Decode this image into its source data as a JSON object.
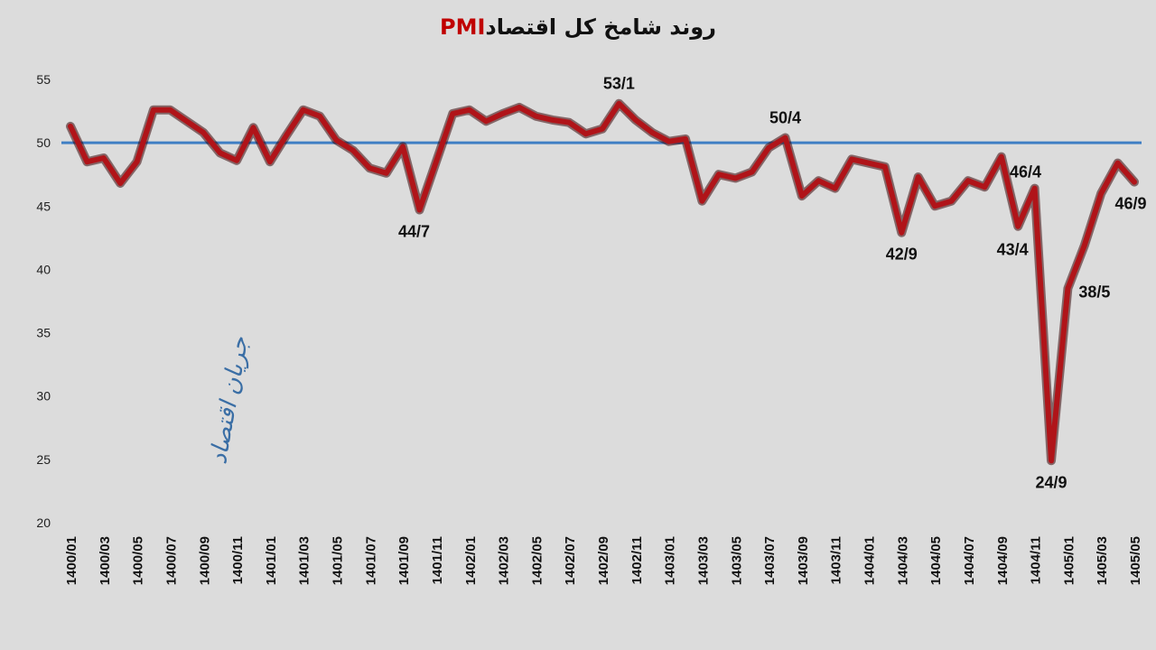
{
  "chart_data": {
    "type": "line",
    "title": "روند شامخ کل اقتصاد",
    "title_highlight": "PMI",
    "title_color": "#111111",
    "title_highlight_color": "#c00000",
    "xlabel": "",
    "ylabel": "",
    "ylim": [
      20,
      55
    ],
    "yticks": [
      20,
      25,
      30,
      35,
      40,
      45,
      50,
      55
    ],
    "grid": false,
    "reference_line": {
      "value": 50,
      "color": "#3f7fc4"
    },
    "series": [
      {
        "color": "#b01419",
        "values": [
          51.3,
          48.5,
          48.8,
          46.8,
          48.5,
          52.6,
          52.6,
          51.7,
          50.8,
          49.2,
          48.6,
          51.2,
          48.5,
          50.6,
          52.6,
          52.1,
          50.2,
          49.4,
          48.0,
          47.6,
          49.7,
          44.7,
          48.5,
          52.3,
          52.6,
          51.7,
          52.3,
          52.8,
          52.1,
          51.8,
          51.6,
          50.7,
          51.1,
          53.1,
          51.8,
          50.8,
          50.1,
          50.3,
          45.4,
          47.5,
          47.2,
          47.7,
          49.6,
          50.4,
          45.8,
          47.0,
          46.4,
          48.7,
          48.4,
          48.1,
          42.9,
          47.3,
          45.0,
          45.4,
          47.0,
          46.5,
          48.9,
          43.4,
          46.4,
          24.9,
          38.5,
          41.9,
          46.0,
          48.4,
          46.9
        ]
      }
    ],
    "categories": [
      "1400/01",
      "1400/02",
      "1400/03",
      "1400/04",
      "1400/05",
      "1400/06",
      "1400/07",
      "1400/08",
      "1400/09",
      "1400/10",
      "1400/11",
      "1400/12",
      "1401/01",
      "1401/02",
      "1401/03",
      "1401/04",
      "1401/05",
      "1401/06",
      "1401/07",
      "1401/08",
      "1401/09",
      "1401/10",
      "1401/11",
      "1401/12",
      "1402/01",
      "1402/02",
      "1402/03",
      "1402/04",
      "1402/05",
      "1402/06",
      "1402/07",
      "1402/08",
      "1402/09",
      "1402/10",
      "1402/11",
      "1402/12",
      "1403/01",
      "1403/02",
      "1403/03",
      "1403/04",
      "1403/05",
      "1403/06",
      "1403/07",
      "1403/08",
      "1403/09",
      "1403/10",
      "1403/11",
      "1403/12",
      "1404/01",
      "1404/02",
      "1404/03",
      "1404/04",
      "1404/05",
      "1404/06",
      "1404/07",
      "1404/08",
      "1404/09",
      "1404/10",
      "1404/11",
      "1404/12",
      "1405/01",
      "1405/02",
      "1405/03",
      "1405/04",
      "1405/05"
    ],
    "tick_labels": [
      "1400/01",
      "1400/03",
      "1400/05",
      "1400/07",
      "1400/09",
      "1400/11",
      "1401/01",
      "1401/03",
      "1401/05",
      "1401/07",
      "1401/09",
      "1401/11",
      "1402/01",
      "1402/03",
      "1402/05",
      "1402/07",
      "1402/09",
      "1402/11",
      "1403/01",
      "1403/03",
      "1403/05",
      "1403/07",
      "1403/09",
      "1403/11",
      "1404/01",
      "1404/03",
      "1404/05",
      "1404/07",
      "1404/09",
      "1404/11",
      "1405/01",
      "1405/03",
      "1405/05"
    ],
    "annotations": [
      {
        "index": 21,
        "text": "44/7",
        "place": "below"
      },
      {
        "index": 33,
        "text": "53/1",
        "place": "above"
      },
      {
        "index": 43,
        "text": "50/4",
        "place": "above"
      },
      {
        "index": 50,
        "text": "42/9",
        "place": "below"
      },
      {
        "index": 57,
        "text": "43/4",
        "place": "below"
      },
      {
        "index": 58,
        "text": "46/4",
        "place": "above"
      },
      {
        "index": 59,
        "text": "24/9",
        "place": "below"
      },
      {
        "index": 60,
        "text": "38/5",
        "place": "right"
      },
      {
        "index": 64,
        "text": "46/9",
        "place": "below"
      }
    ],
    "watermark": "جریان اقتصاد"
  }
}
